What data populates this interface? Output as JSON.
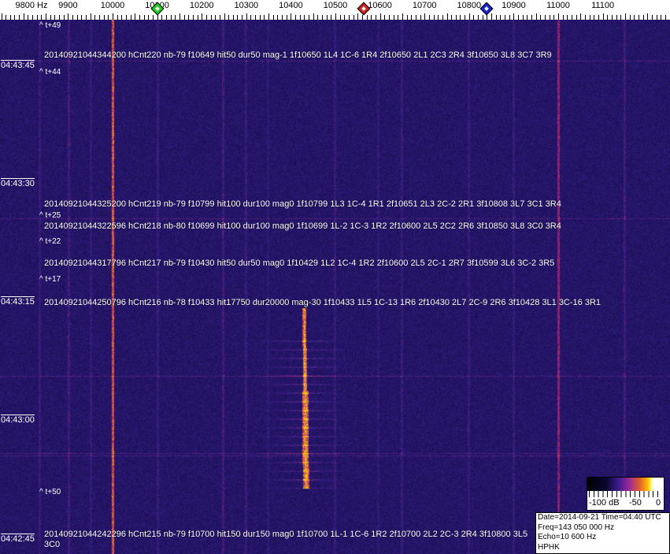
{
  "axis": {
    "unit_label": "9800 Hz",
    "freq_labels": [
      "9900",
      "10000",
      "10100",
      "10200",
      "10300",
      "10400",
      "10500",
      "10600",
      "10700",
      "10800",
      "10900",
      "11000",
      "11100"
    ],
    "markers": [
      {
        "name": "green",
        "freq": 10100,
        "color": "#22cc22"
      },
      {
        "name": "red",
        "freq": 10564,
        "color": "#cc2222"
      },
      {
        "name": "blue",
        "freq": 10839,
        "color": "#1a22cc"
      }
    ]
  },
  "time_labels": [
    "04:43:45",
    "04:43:30",
    "04:43:15",
    "04:43:00",
    "04:42:45"
  ],
  "t_offsets": [
    "^ t+49",
    "^ t+44",
    "^ t+25",
    "^ t+22",
    "^ t+17",
    "^ t+50"
  ],
  "detections": [
    "20140921044344200 hCnt220 nb-79 f10649 hit50 dur50 mag-1 1f10650 1L4 1C-6 1R4 2f10650 2L1 2C3 2R4 3f10650 3L8 3C7 3R9",
    "20140921044325200 hCnt219 nb-79 f10799 hit100 dur100 mag0 1f10799 1L3 1C-4 1R1 2f10651 2L3 2C-2 2R1 3f10808 3L7 3C1 3R4",
    "20140921044322596 hCnt218 nb-80 f10699 hit100 dur100 mag0 1f10699 1L-2 1C-3 1R2 2f10600 2L5 2C2 2R6 3f10850 3L8 3C0 3R4",
    "20140921044317796 hCnt217 nb-79 f10430 hit50 dur50 mag0 1f10429 1L2 1C-4 1R2 2f10600 2L5 2C-1 2R7 3f10599 3L6 3C-2 3R5",
    "20140921044250796 hCnt216 nb-78 f10433 hit17750 dur20000 mag-30 1f10433 1L5 1C-13 1R6 2f10430 2L7 2C-9 2R6 3f10428 3L1 3C-16 3R1",
    "20140921044242296 hCnt215 nb-79 f10700 hit150 dur150 mag0 1f10700 1L-1 1C-6 1R2 2f10700 2L2 2C-3 2R4 3f10800 3L5 3C0"
  ],
  "colorbar": {
    "labels": [
      "-100 dB",
      "-50",
      "0"
    ]
  },
  "info": {
    "date_time": "Date=2014-09-21 Time=04:40 UTC",
    "freq": "Freq=143 050 000 Hz",
    "echo": "Echo=10 600 Hz",
    "station": "HPHK"
  },
  "colors": {
    "background": "#2a1f6e",
    "echo": "#ffb000"
  }
}
